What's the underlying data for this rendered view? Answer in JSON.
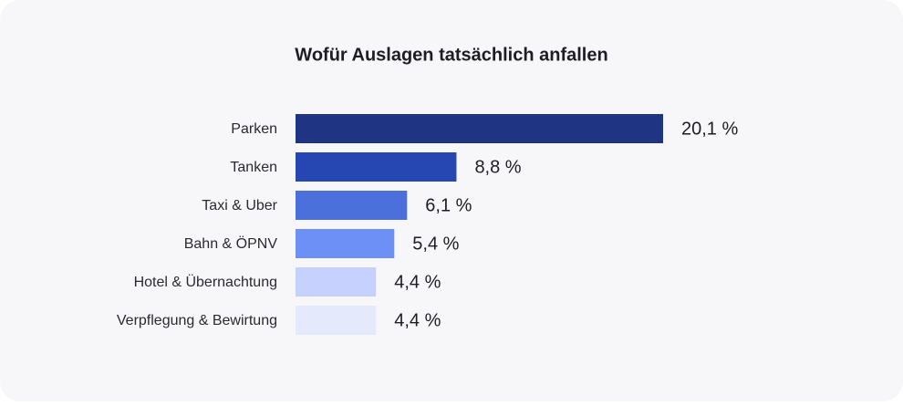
{
  "chart_data": {
    "type": "bar",
    "orientation": "horizontal",
    "title": "Wofür Auslagen tatsächlich anfallen",
    "categories": [
      "Parken",
      "Tanken",
      "Taxi & Uber",
      "Bahn & ÖPNV",
      "Hotel & Übernachtung",
      "Verpflegung & Bewirtung"
    ],
    "values": [
      20.1,
      8.8,
      6.1,
      5.4,
      4.4,
      4.4
    ],
    "value_labels": [
      "20,1 %",
      "8,8 %",
      "6,1 %",
      "5,4 %",
      "4,4 %",
      "4,4 %"
    ],
    "colors": [
      "#1f3584",
      "#2647b2",
      "#4b70dc",
      "#6d90f6",
      "#c6d1fd",
      "#e4e9fc"
    ]
  }
}
